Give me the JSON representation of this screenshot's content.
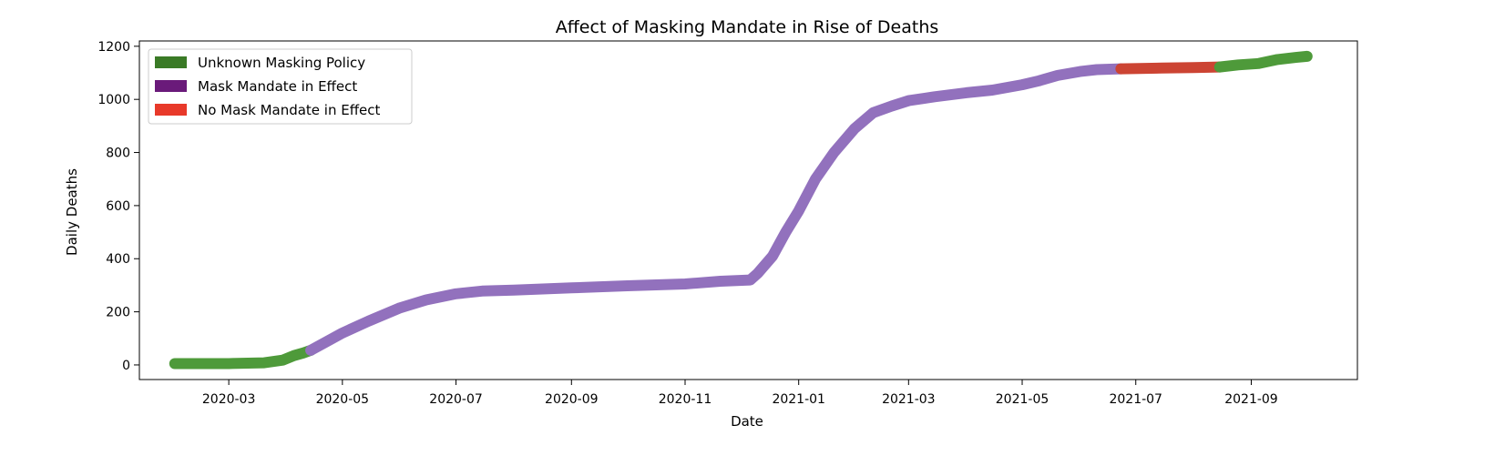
{
  "chart_data": {
    "type": "scatter",
    "title": "Affect of Masking Mandate in Rise of Deaths",
    "xlabel": "Date",
    "ylabel": "Daily Deaths",
    "xlim": [
      "2020-01-13",
      "2021-10-28"
    ],
    "ylim": [
      -55,
      1220
    ],
    "x_ticks": [
      "2020-03-01",
      "2020-05-01",
      "2020-07-01",
      "2020-09-01",
      "2020-11-01",
      "2021-01-01",
      "2021-03-01",
      "2021-05-01",
      "2021-07-01",
      "2021-09-01"
    ],
    "x_tick_labels": [
      "2020-03",
      "2020-05",
      "2020-07",
      "2020-09",
      "2020-11",
      "2021-01",
      "2021-03",
      "2021-05",
      "2021-07",
      "2021-09"
    ],
    "y_ticks": [
      0,
      200,
      400,
      600,
      800,
      1000,
      1200
    ],
    "y_tick_labels": [
      "0",
      "200",
      "400",
      "600",
      "800",
      "1000",
      "1200"
    ],
    "grid": false,
    "legend_position": "top-left",
    "series": [
      {
        "name": "Unknown Masking Policy",
        "color": "#4e9a3a",
        "legend_color": "#3a7a26",
        "points": [
          [
            "2020-02-01",
            5
          ],
          [
            "2020-03-01",
            5
          ],
          [
            "2020-03-20",
            8
          ],
          [
            "2020-03-30",
            18
          ],
          [
            "2020-04-05",
            35
          ],
          [
            "2020-04-10",
            45
          ],
          [
            "2020-04-14",
            55
          ]
        ]
      },
      {
        "name": "Mask Mandate in Effect",
        "color": "#9271bd",
        "legend_color": "#6a1a7a",
        "points": [
          [
            "2020-04-14",
            55
          ],
          [
            "2020-05-01",
            120
          ],
          [
            "2020-05-15",
            165
          ],
          [
            "2020-06-01",
            215
          ],
          [
            "2020-06-15",
            245
          ],
          [
            "2020-07-01",
            268
          ],
          [
            "2020-07-15",
            278
          ],
          [
            "2020-08-01",
            282
          ],
          [
            "2020-09-01",
            290
          ],
          [
            "2020-10-01",
            298
          ],
          [
            "2020-11-01",
            305
          ],
          [
            "2020-11-20",
            315
          ],
          [
            "2020-12-06",
            320
          ],
          [
            "2020-12-10",
            345
          ],
          [
            "2020-12-18",
            410
          ],
          [
            "2020-12-25",
            500
          ],
          [
            "2021-01-01",
            580
          ],
          [
            "2021-01-10",
            700
          ],
          [
            "2021-01-20",
            800
          ],
          [
            "2021-01-31",
            890
          ],
          [
            "2021-02-10",
            950
          ],
          [
            "2021-02-20",
            975
          ],
          [
            "2021-03-01",
            995
          ],
          [
            "2021-03-15",
            1010
          ],
          [
            "2021-04-01",
            1025
          ],
          [
            "2021-04-15",
            1035
          ],
          [
            "2021-05-01",
            1055
          ],
          [
            "2021-05-10",
            1070
          ],
          [
            "2021-05-20",
            1090
          ],
          [
            "2021-06-01",
            1105
          ],
          [
            "2021-06-10",
            1112
          ],
          [
            "2021-06-23",
            1115
          ]
        ]
      },
      {
        "name": "No Mask Mandate in Effect",
        "color": "#cc4433",
        "legend_color": "#e8392a",
        "points": [
          [
            "2021-06-23",
            1115
          ],
          [
            "2021-07-15",
            1118
          ],
          [
            "2021-08-01",
            1120
          ],
          [
            "2021-08-15",
            1122
          ]
        ]
      },
      {
        "name": "",
        "color": "#4e9a3a",
        "legend_color": "",
        "points": [
          [
            "2021-08-15",
            1122
          ],
          [
            "2021-08-25",
            1130
          ],
          [
            "2021-09-05",
            1135
          ],
          [
            "2021-09-15",
            1150
          ],
          [
            "2021-09-25",
            1158
          ],
          [
            "2021-10-01",
            1162
          ]
        ]
      }
    ]
  }
}
